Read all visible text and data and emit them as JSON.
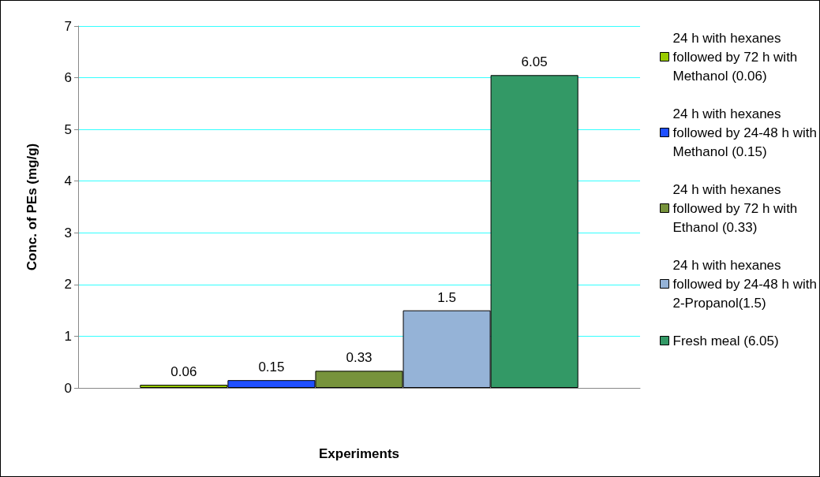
{
  "chart_data": {
    "type": "bar",
    "xlabel": "Experiments",
    "ylabel": "Conc. of PEs (mg/g)",
    "categories": [
      null
    ],
    "series": [
      {
        "name": "24 h with hexanes followed by 72 h with Methanol (0.06)",
        "color": "#99cc00",
        "values": [
          0.06
        ]
      },
      {
        "name": "24 h with hexanes followed by 24-48 h with Methanol (0.15)",
        "color": "#1f4fff",
        "values": [
          0.15
        ]
      },
      {
        "name": "24 h with hexanes followed by 72 h with Ethanol (0.33)",
        "color": "#77933c",
        "values": [
          0.33
        ]
      },
      {
        "name": "24 h with hexanes followed by 24-48 h with 2-Propanol(1.5)",
        "color": "#95b3d7",
        "values": [
          1.5
        ]
      },
      {
        "name": "Fresh meal (6.05)",
        "color": "#339966",
        "values": [
          6.05
        ]
      }
    ],
    "ylim": [
      0,
      7
    ],
    "yticks": [
      0,
      1,
      2,
      3,
      4,
      5,
      6,
      7
    ],
    "grid": "y",
    "legend": "right",
    "data_labels": true
  }
}
